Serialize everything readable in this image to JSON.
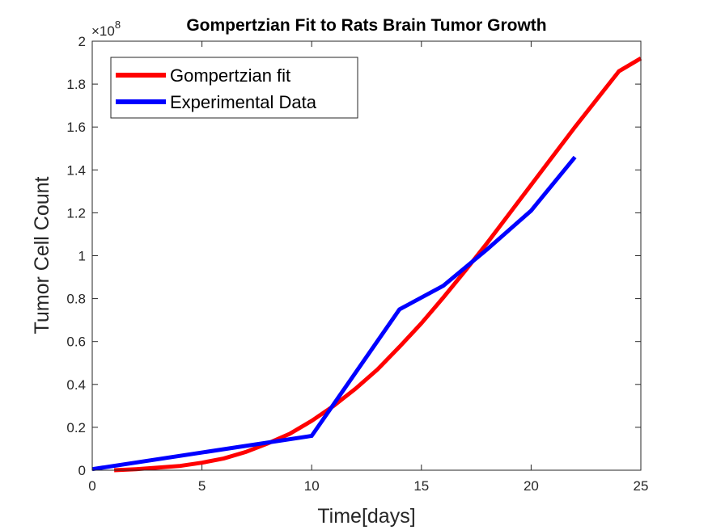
{
  "chart_data": {
    "type": "line",
    "title": "Gompertzian Fit to Rats Brain Tumor Growth",
    "xlabel": "Time[days]",
    "ylabel": "Tumor Cell Count",
    "xlim": [
      0,
      25
    ],
    "ylim": [
      0,
      200000000
    ],
    "x_ticks": [
      "0",
      "5",
      "10",
      "15",
      "20",
      "25"
    ],
    "y_ticks": [
      "0",
      "0.2",
      "0.4",
      "0.6",
      "0.8",
      "1",
      "1.2",
      "1.4",
      "1.6",
      "1.8",
      "2"
    ],
    "y_exponent_base": "×10",
    "y_exponent_power": "8",
    "grid": false,
    "legend_position": "top-left",
    "series": [
      {
        "name": "Gompertzian fit",
        "color": "#ff0000",
        "x": [
          1,
          2,
          3,
          4,
          5,
          6,
          7,
          8,
          9,
          10,
          11,
          12,
          13,
          14,
          15,
          16,
          17,
          18,
          19,
          20,
          21,
          22,
          23,
          24,
          25
        ],
        "y": [
          0,
          500000,
          1200000,
          2000000,
          3500000,
          5500000,
          8500000,
          12500000,
          17000000,
          23000000,
          30000000,
          38000000,
          47000000,
          57500000,
          68500000,
          80500000,
          93000000,
          106000000,
          119500000,
          133000000,
          146500000,
          160000000,
          173000000,
          186000000,
          192000000
        ]
      },
      {
        "name": "Experimental Data",
        "color": "#0000ff",
        "x": [
          0,
          10,
          14,
          16,
          18,
          20,
          22
        ],
        "y": [
          500000,
          16000000,
          75000000,
          86000000,
          103000000,
          121000000,
          146000000
        ]
      }
    ]
  }
}
